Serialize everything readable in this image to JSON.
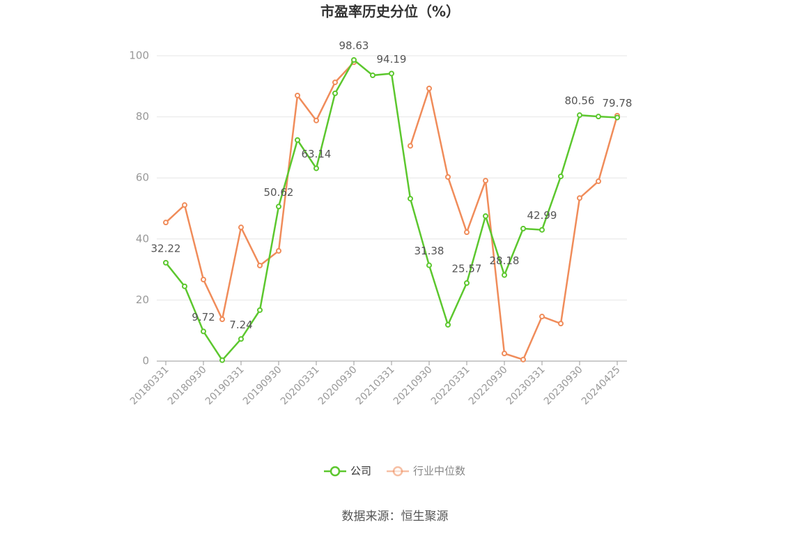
{
  "chart_data": {
    "type": "line",
    "title": "市盈率历史分位（%）",
    "categories": [
      "20180331",
      null,
      "20180930",
      null,
      "20190331",
      null,
      "20190930",
      null,
      "20200331",
      null,
      "20200930",
      null,
      "20210331",
      null,
      "20210930",
      null,
      "20220331",
      null,
      "20220930",
      null,
      "20230331",
      null,
      "20230930",
      null,
      "20240425"
    ],
    "series": [
      {
        "name": "公司",
        "color": "#5cc72e",
        "values": [
          32.22,
          24.5,
          9.72,
          0.3,
          7.24,
          16.7,
          50.62,
          72.4,
          63.14,
          87.7,
          98.63,
          93.6,
          94.19,
          53.2,
          31.38,
          11.9,
          25.57,
          47.5,
          28.18,
          43.4,
          42.99,
          60.5,
          80.56,
          80.1,
          79.78
        ],
        "value_labels": [
          "32.22",
          null,
          "9.72",
          null,
          "7.24",
          null,
          "50.62",
          null,
          "63.14",
          null,
          "98.63",
          null,
          "94.19",
          null,
          "31.38",
          null,
          "25.57",
          null,
          "28.18",
          null,
          "42.99",
          null,
          "80.56",
          null,
          "79.78"
        ]
      },
      {
        "name": "行业中位数",
        "color": "#f08c5a",
        "values": [
          45.4,
          51.1,
          26.7,
          13.7,
          43.8,
          31.3,
          36.1,
          87.0,
          78.8,
          91.3,
          97.9,
          null,
          null,
          70.5,
          89.3,
          60.3,
          42.2,
          59.1,
          2.5,
          0.5,
          14.6,
          12.3,
          53.4,
          58.9,
          80.4
        ]
      }
    ],
    "ylim": [
      0,
      100
    ],
    "yticks": [
      0,
      20,
      40,
      60,
      80,
      100
    ],
    "grid": true,
    "legend": "bottom",
    "source": "数据来源：恒生聚源"
  }
}
